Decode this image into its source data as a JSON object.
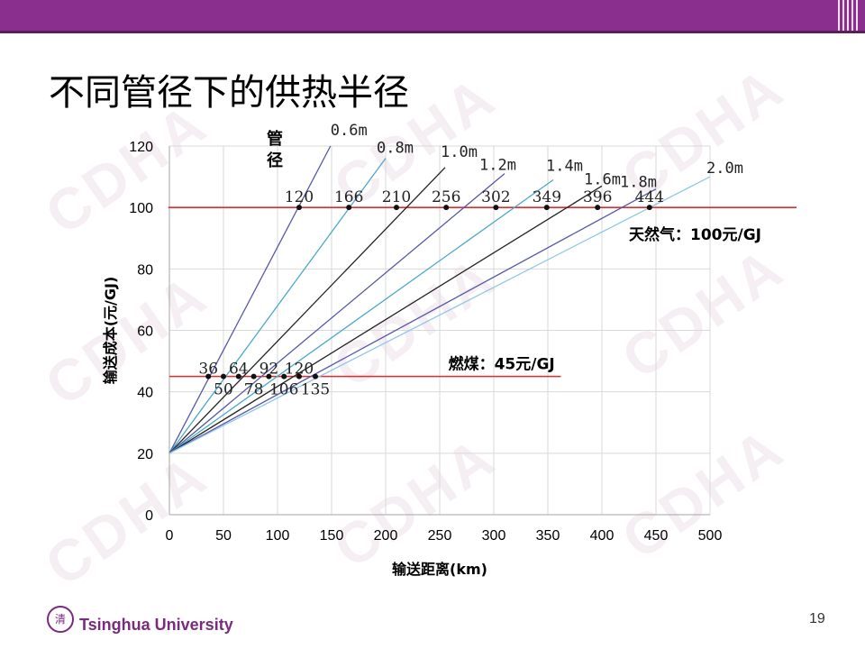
{
  "slide": {
    "title": "不同管径下的供热半径",
    "university": "Tsinghua University",
    "page_number": "19",
    "watermark": "CDHA",
    "logo_text": "清"
  },
  "colors": {
    "header": "#8b2f8e",
    "reference_line": "#e32a2a",
    "axis": "#a6a6a6",
    "grid": "#d9d9d9"
  },
  "chart_data": {
    "type": "line",
    "xlabel": "输送距离(km)",
    "ylabel": "输送成本(元/GJ)",
    "xlim": [
      0,
      500
    ],
    "ylim": [
      0,
      120
    ],
    "xticks": [
      0,
      50,
      100,
      150,
      200,
      250,
      300,
      350,
      400,
      450,
      500
    ],
    "yticks": [
      0,
      20,
      40,
      60,
      80,
      100,
      120
    ],
    "grid": true,
    "legend_heading": "管径",
    "y_intercept": 20,
    "series": [
      {
        "name": "0.6m",
        "color": "#5558a8",
        "x": [
          0,
          149
        ],
        "y": [
          20,
          120
        ],
        "x_at_100": 120,
        "x_at_45": 36
      },
      {
        "name": "0.8m",
        "color": "#4aa9c9",
        "x": [
          0,
          200
        ],
        "y": [
          20,
          116
        ],
        "x_at_100": 166,
        "x_at_45": 50
      },
      {
        "name": "1.0m",
        "color": "#222222",
        "x": [
          0,
          255
        ],
        "y": [
          20,
          113
        ],
        "x_at_100": 210,
        "x_at_45": 64
      },
      {
        "name": "1.2m",
        "color": "#5558a8",
        "x": [
          0,
          310
        ],
        "y": [
          20,
          111
        ],
        "x_at_100": 256,
        "x_at_45": 78
      },
      {
        "name": "1.4m",
        "color": "#4aa9c9",
        "x": [
          0,
          355
        ],
        "y": [
          20,
          109
        ],
        "x_at_100": 302,
        "x_at_45": 92
      },
      {
        "name": "1.6m",
        "color": "#222222",
        "x": [
          0,
          400
        ],
        "y": [
          20,
          107
        ],
        "x_at_100": 349,
        "x_at_45": 106
      },
      {
        "name": "1.8m",
        "color": "#5558a8",
        "x": [
          0,
          450
        ],
        "y": [
          20,
          106
        ],
        "x_at_100": 396,
        "x_at_45": 120
      },
      {
        "name": "2.0m",
        "color": "#8fc9e6",
        "x": [
          0,
          500
        ],
        "y": [
          20,
          110
        ],
        "x_at_100": 444,
        "x_at_45": 135
      }
    ],
    "reference_lines": [
      {
        "label": "天然气：100元/GJ",
        "y": 100,
        "x_range": [
          -1,
          580
        ]
      },
      {
        "label": "燃煤：45元/GJ",
        "y": 45,
        "x_range": [
          0,
          362
        ]
      }
    ],
    "point_labels_100": [
      "120",
      "166",
      "210",
      "256",
      "302",
      "349",
      "396",
      "444"
    ],
    "point_labels_45_upper": [
      "36",
      "64",
      "92",
      "120"
    ],
    "point_labels_45_lower": [
      "50",
      "78",
      "106",
      "135"
    ]
  }
}
